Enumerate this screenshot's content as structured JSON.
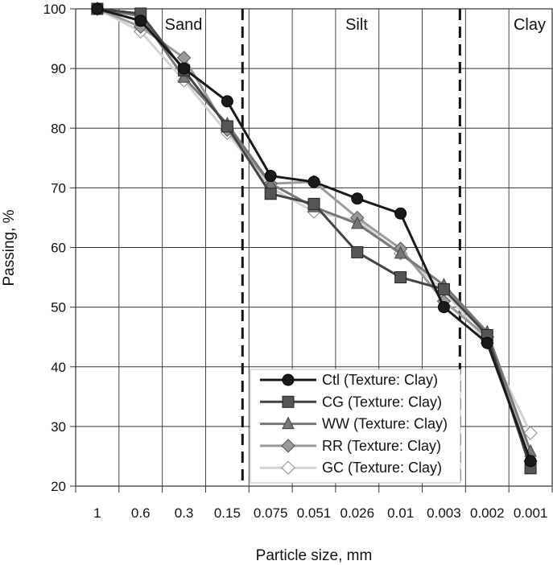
{
  "chart_data": {
    "type": "line",
    "title": "",
    "xlabel": "Particle size, mm",
    "ylabel": "Passing, %",
    "ylim": [
      20,
      100
    ],
    "yticks": [
      "20",
      "30",
      "40",
      "50",
      "60",
      "70",
      "80",
      "90",
      "100"
    ],
    "categories": [
      "1",
      "0.6",
      "0.3",
      "0.15",
      "0.075",
      "0.051",
      "0.026",
      "0.01",
      "0.003",
      "0.002",
      "0.001"
    ],
    "regions": [
      {
        "label": "Sand"
      },
      {
        "label": "Silt"
      },
      {
        "label": "Clay"
      }
    ],
    "region_boundaries": [
      "0.075",
      "0.002"
    ],
    "grid": true,
    "legend_position": "bottom-center",
    "series": [
      {
        "name": "Ctl (Texture: Clay)",
        "marker": "circle",
        "color": "#1a1a1a",
        "fill": "#1a1a1a",
        "values": [
          100,
          98,
          90,
          84.5,
          72,
          71,
          68.2,
          65.7,
          50,
          44,
          24.2
        ]
      },
      {
        "name": "CG (Texture: Clay)",
        "marker": "square",
        "color": "#444444",
        "fill": "#555555",
        "values": [
          100,
          99.2,
          89.7,
          80.3,
          69,
          67.3,
          59.2,
          55,
          53,
          45.3,
          23
        ]
      },
      {
        "name": "WW (Texture: Clay)",
        "marker": "triangle",
        "color": "#777777",
        "fill": "#777777",
        "values": [
          100,
          98.8,
          88.5,
          80.7,
          70.7,
          66.8,
          64,
          59,
          53.7,
          45.8,
          25.8
        ]
      },
      {
        "name": "RR (Texture: Clay)",
        "marker": "diamond",
        "color": "#9a9a9a",
        "fill": "#9a9a9a",
        "values": [
          100,
          97,
          91.8,
          79.7,
          70.7,
          71,
          65,
          59.8,
          51,
          45,
          24.2
        ]
      },
      {
        "name": "GC (Texture: Clay)",
        "marker": "diamond-open",
        "color": "#d2d2d2",
        "fill": "#ffffff",
        "values": [
          100,
          96.2,
          88,
          79.2,
          70,
          66,
          64.5,
          59,
          52.8,
          44,
          28.9
        ]
      }
    ]
  }
}
